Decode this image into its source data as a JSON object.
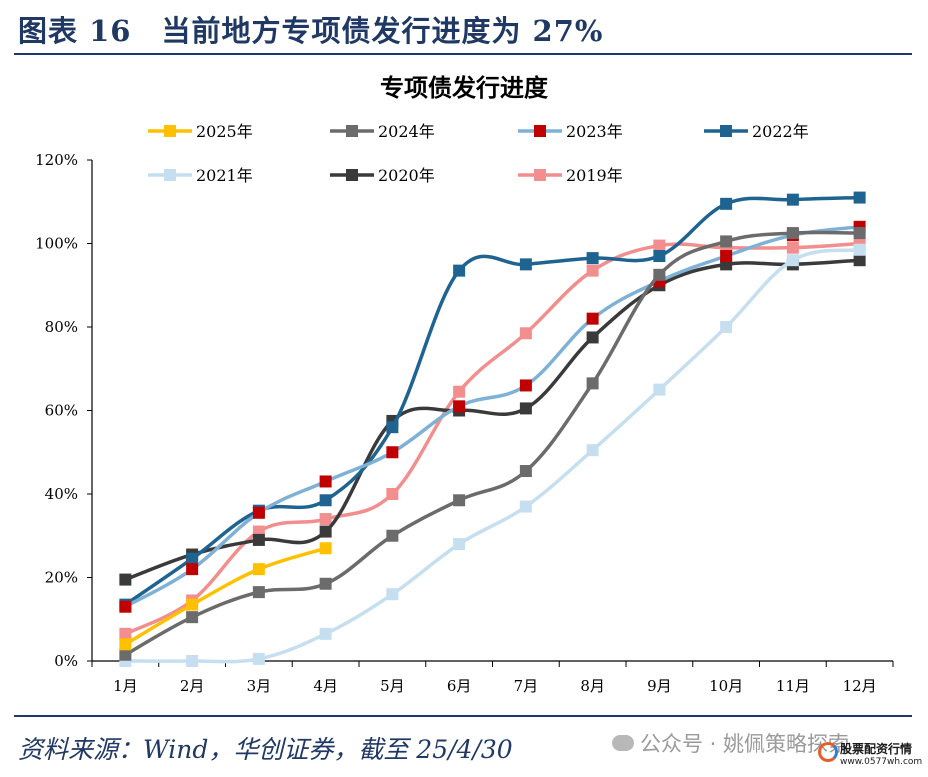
{
  "header": {
    "title": "图表 16　当前地方专项债发行进度为 27%"
  },
  "chart_data": {
    "type": "line",
    "title": "专项债发行进度",
    "xlabel": "",
    "ylabel": "",
    "categories": [
      "1月",
      "2月",
      "3月",
      "4月",
      "5月",
      "6月",
      "7月",
      "8月",
      "9月",
      "10月",
      "11月",
      "12月"
    ],
    "ylim": [
      0,
      120
    ],
    "yticks": [
      "0%",
      "20%",
      "40%",
      "60%",
      "80%",
      "100%",
      "120%"
    ],
    "legend_position": "top",
    "grid": false,
    "series": [
      {
        "name": "2025年",
        "color": "#ffc000",
        "values": [
          4,
          13.5,
          22,
          27,
          null,
          null,
          null,
          null,
          null,
          null,
          null,
          null
        ]
      },
      {
        "name": "2024年",
        "color": "#6b6b6b",
        "values": [
          1.5,
          10.5,
          16.5,
          18.5,
          30,
          38.5,
          45.5,
          66.5,
          92.5,
          100.5,
          102.5,
          102.5
        ]
      },
      {
        "name": "2023年",
        "color": "#7fb1d6",
        "marker_color": "#c00000",
        "values": [
          13,
          22,
          35.5,
          43,
          50,
          61,
          66,
          82,
          91,
          97,
          102,
          104
        ]
      },
      {
        "name": "2022年",
        "color": "#1f6391",
        "values": [
          13.5,
          24.5,
          36,
          38.5,
          56,
          93.5,
          95,
          96.5,
          97,
          109.5,
          110.5,
          111
        ]
      },
      {
        "name": "2021年",
        "color": "#c6dff0",
        "values": [
          0,
          0,
          0.5,
          6.5,
          16,
          28,
          37,
          50.5,
          65,
          80,
          96,
          98.5
        ]
      },
      {
        "name": "2020年",
        "color": "#3a3a3a",
        "values": [
          19.5,
          25.5,
          29,
          31,
          57.5,
          60,
          60.5,
          77.5,
          90,
          95,
          95,
          96
        ]
      },
      {
        "name": "2019年",
        "color": "#f28e8e",
        "values": [
          6.5,
          14.5,
          31,
          34,
          40,
          64.5,
          78.5,
          93.5,
          99.5,
          99,
          99,
          100
        ]
      }
    ]
  },
  "footer": {
    "source": "资料来源：Wind，华创证券，截至 25/4/30",
    "watermark": "公众号 · 姚佩策略探索",
    "logo_name": "股票配资行情",
    "logo_url": "www.0577wh.com"
  }
}
